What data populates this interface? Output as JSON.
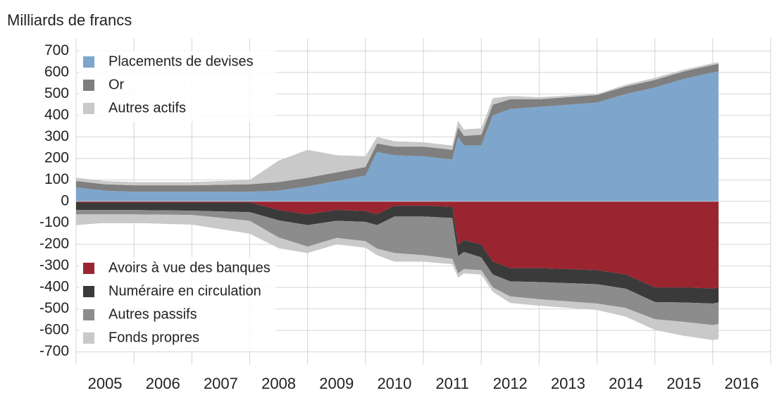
{
  "chart_data": {
    "type": "stacked_area",
    "title": "Milliards de francs",
    "x": [
      2005,
      2005.5,
      2006,
      2007,
      2008,
      2008.5,
      2009,
      2009.5,
      2010,
      2010.2,
      2010.5,
      2011,
      2011.5,
      2011.6,
      2011.7,
      2012,
      2012.2,
      2012.5,
      2013,
      2014,
      2014.5,
      2015,
      2015.5,
      2016,
      2016.1
    ],
    "series": [
      {
        "name": "Placements de devises",
        "color": "#7ea6cc",
        "values": [
          65,
          50,
          45,
          45,
          45,
          50,
          70,
          95,
          120,
          230,
          215,
          210,
          195,
          300,
          260,
          260,
          400,
          430,
          440,
          460,
          500,
          530,
          570,
          600,
          605
        ]
      },
      {
        "name": "Or",
        "color": "#7f7f7f",
        "values": [
          30,
          30,
          30,
          30,
          35,
          40,
          40,
          40,
          40,
          40,
          40,
          45,
          45,
          45,
          45,
          50,
          50,
          45,
          35,
          35,
          35,
          35,
          35,
          35,
          35
        ]
      },
      {
        "name": "Autres actifs",
        "color": "#c9c9c9",
        "values": [
          15,
          15,
          15,
          15,
          20,
          100,
          130,
          80,
          50,
          30,
          25,
          20,
          20,
          30,
          30,
          30,
          30,
          15,
          10,
          5,
          8,
          10,
          8,
          8,
          8
        ]
      },
      {
        "name": "Avoirs à vue des banques",
        "color": "#9a2530",
        "values": [
          -5,
          -5,
          -5,
          -5,
          -5,
          -40,
          -60,
          -40,
          -45,
          -60,
          -20,
          -20,
          -25,
          -200,
          -180,
          -200,
          -280,
          -310,
          -310,
          -320,
          -340,
          -400,
          -400,
          -405,
          -400
        ]
      },
      {
        "name": "Numéraire en circulation",
        "color": "#3a3a3a",
        "values": [
          -35,
          -35,
          -35,
          -38,
          -45,
          -48,
          -50,
          -50,
          -50,
          -50,
          -50,
          -50,
          -52,
          -55,
          -55,
          -60,
          -60,
          -62,
          -65,
          -65,
          -66,
          -68,
          -70,
          -70,
          -70
        ]
      },
      {
        "name": "Autres passifs",
        "color": "#8c8c8c",
        "values": [
          -20,
          -20,
          -20,
          -20,
          -40,
          -80,
          -100,
          -80,
          -90,
          -110,
          -170,
          -180,
          -190,
          -80,
          -80,
          -60,
          -60,
          -70,
          -80,
          -90,
          -90,
          -80,
          -90,
          -100,
          -100
        ]
      },
      {
        "name": "Fonds propres",
        "color": "#c9c9c9",
        "values": [
          -50,
          -40,
          -40,
          -45,
          -60,
          -50,
          -30,
          -30,
          -30,
          -30,
          -40,
          -30,
          -25,
          -20,
          -20,
          -20,
          -20,
          -30,
          -30,
          -30,
          -40,
          -50,
          -65,
          -70,
          -70
        ]
      }
    ],
    "xlim": [
      2005,
      2017
    ],
    "xticks": [
      2005,
      2006,
      2007,
      2008,
      2009,
      2010,
      2011,
      2012,
      2013,
      2014,
      2015,
      2016
    ],
    "ylim": [
      -760,
      760
    ],
    "yticks": [
      -700,
      -600,
      -500,
      -400,
      -300,
      -200,
      -100,
      0,
      100,
      200,
      300,
      400,
      500,
      600,
      700
    ],
    "grid": true
  }
}
